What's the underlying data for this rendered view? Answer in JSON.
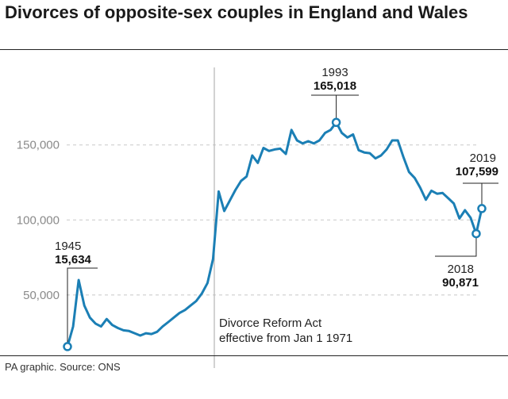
{
  "title": "Divorces of opposite-sex couples in England and Wales",
  "source": "PA graphic. Source: ONS",
  "colors": {
    "line": "#1b7fb5",
    "grid": "#c8c8c8",
    "divider": "#b5b5b5"
  },
  "chart_data": {
    "type": "line",
    "title": "Divorces of opposite-sex couples in England and Wales",
    "xlabel": "",
    "ylabel": "",
    "xlim": [
      1945,
      2019
    ],
    "ylim": [
      0,
      190000
    ],
    "yticks": [
      50000,
      100000,
      150000
    ],
    "ytick_labels": [
      "50,000",
      "100,000",
      "150,000"
    ],
    "grid": "horizontal dashed",
    "series": [
      {
        "x": [
          1945,
          1946,
          1947,
          1948,
          1949,
          1950,
          1951,
          1952,
          1953,
          1954,
          1955,
          1956,
          1957,
          1958,
          1959,
          1960,
          1961,
          1962,
          1963,
          1964,
          1965,
          1966,
          1967,
          1968,
          1969,
          1970,
          1971,
          1972,
          1973,
          1974,
          1975,
          1976,
          1977,
          1978,
          1979,
          1980,
          1981,
          1982,
          1983,
          1984,
          1985,
          1986,
          1987,
          1988,
          1989,
          1990,
          1991,
          1992,
          1993,
          1994,
          1995,
          1996,
          1997,
          1998,
          1999,
          2000,
          2001,
          2002,
          2003,
          2004,
          2005,
          2006,
          2007,
          2008,
          2009,
          2010,
          2011,
          2012,
          2013,
          2014,
          2015,
          2016,
          2017,
          2018,
          2019
        ],
        "y": [
          15634,
          29000,
          60000,
          43000,
          35000,
          31000,
          29000,
          34000,
          30000,
          28000,
          26500,
          26000,
          24500,
          23000,
          24500,
          24000,
          25500,
          29000,
          32000,
          35000,
          38000,
          40000,
          43000,
          46000,
          51000,
          58000,
          74000,
          119000,
          106000,
          113000,
          120000,
          126000,
          129000,
          143000,
          138000,
          148000,
          146000,
          147000,
          147500,
          144000,
          160000,
          153000,
          151000,
          152500,
          151000,
          153000,
          158000,
          160000,
          165018,
          158000,
          155000,
          157000,
          146500,
          145000,
          144500,
          141000,
          143000,
          147000,
          153000,
          153000,
          142000,
          132000,
          128000,
          121500,
          113500,
          119500,
          117500,
          118000,
          114500,
          111000,
          101000,
          106500,
          101500,
          90871,
          107599
        ]
      }
    ],
    "annotations": [
      {
        "year": "1945",
        "value": "15,634"
      },
      {
        "year": "1993",
        "value": "165,018"
      },
      {
        "year": "2018",
        "value": "90,871"
      },
      {
        "year": "2019",
        "value": "107,599"
      }
    ],
    "event": {
      "year": 1971,
      "label_line1": "Divorce Reform Act",
      "label_line2": "effective from Jan 1 1971"
    }
  }
}
